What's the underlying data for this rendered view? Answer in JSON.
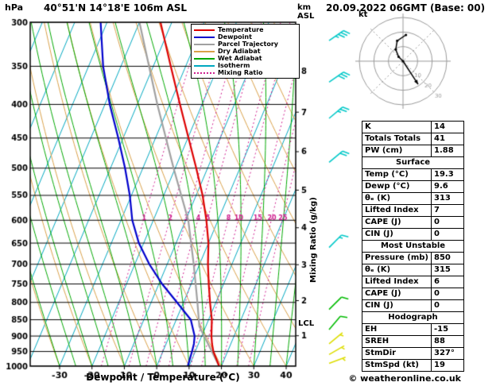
{
  "meta": {
    "pressure_unit": "hPa",
    "station": "40°51'N 14°18'E 106m ASL",
    "datetime": "20.09.2022 06GMT (Base: 00)",
    "altitude_axis_label": "km\nASL",
    "right_axis_label": "Mixing Ratio (g/kg)",
    "xlabel": "Dewpoint / Temperature (°C)",
    "lcl_label": "LCL",
    "copyright": "© weatheronline.co.uk"
  },
  "legend": [
    {
      "key": "temperature",
      "label": "Temperature",
      "color": "#dd0000",
      "style": "solid"
    },
    {
      "key": "dewpoint",
      "label": "Dewpoint",
      "color": "#0000cc",
      "style": "solid"
    },
    {
      "key": "parcel",
      "label": "Parcel Trajectory",
      "color": "#a0a0a0",
      "style": "solid"
    },
    {
      "key": "dry_adiabat",
      "label": "Dry Adiabat",
      "color": "#d9a048",
      "style": "solid"
    },
    {
      "key": "wet_adiabat",
      "label": "Wet Adiabat",
      "color": "#00a800",
      "style": "solid"
    },
    {
      "key": "isotherm",
      "label": "Isotherm",
      "color": "#00a8c0",
      "style": "solid"
    },
    {
      "key": "mixing_ratio",
      "label": "Mixing Ratio",
      "color": "#d02090",
      "style": "dotted"
    }
  ],
  "chart_data": {
    "type": "skewt-logp",
    "title": "40°51'N 14°18'E 106m ASL",
    "pressure_axis": {
      "unit": "hPa",
      "scale": "log",
      "range": [
        300,
        1000
      ],
      "ticks": [
        300,
        350,
        400,
        450,
        500,
        550,
        600,
        650,
        700,
        750,
        800,
        850,
        900,
        950,
        1000
      ]
    },
    "temp_axis": {
      "unit": "°C",
      "ticks": [
        -30,
        -20,
        -10,
        0,
        10,
        20,
        30,
        40
      ]
    },
    "km_axis": {
      "unit": "km ASL",
      "ticks": [
        1,
        2,
        3,
        4,
        5,
        6,
        7,
        8
      ]
    },
    "isotherms": {
      "start": -100,
      "end": 40,
      "step": 10
    },
    "dry_adiabats": {
      "start": -30,
      "end": 120,
      "step": 10
    },
    "wet_adiabats": {
      "start": -30,
      "end": 45,
      "step": 5
    },
    "mixing_ratio_lines": [
      1,
      2,
      3,
      4,
      5,
      8,
      10,
      15,
      20,
      25
    ],
    "mixing_ratio_label_pressure": 595,
    "lcl_pressure": 870,
    "temperature_profile": [
      [
        1000,
        19.3
      ],
      [
        950,
        15.6
      ],
      [
        925,
        14.2
      ],
      [
        900,
        13.0
      ],
      [
        850,
        11.0
      ],
      [
        800,
        8.2
      ],
      [
        750,
        5.4
      ],
      [
        700,
        2.6
      ],
      [
        650,
        0.0
      ],
      [
        600,
        -3.6
      ],
      [
        550,
        -8.0
      ],
      [
        500,
        -13.5
      ],
      [
        450,
        -19.8
      ],
      [
        400,
        -26.8
      ],
      [
        350,
        -34.6
      ],
      [
        300,
        -43.5
      ]
    ],
    "dewpoint_profile": [
      [
        1000,
        9.6
      ],
      [
        950,
        9.0
      ],
      [
        925,
        8.6
      ],
      [
        900,
        7.8
      ],
      [
        850,
        4.5
      ],
      [
        800,
        -2.0
      ],
      [
        750,
        -9.0
      ],
      [
        700,
        -15.5
      ],
      [
        650,
        -21.5
      ],
      [
        600,
        -26.5
      ],
      [
        550,
        -30.5
      ],
      [
        500,
        -35.5
      ],
      [
        450,
        -41.5
      ],
      [
        400,
        -48.5
      ],
      [
        350,
        -55.5
      ],
      [
        300,
        -62.0
      ]
    ],
    "parcel_profile": [
      [
        1000,
        19.3
      ],
      [
        870,
        8.0
      ],
      [
        800,
        4.3
      ],
      [
        700,
        -1.8
      ],
      [
        600,
        -9.2
      ],
      [
        500,
        -20.5
      ],
      [
        400,
        -33.8
      ],
      [
        300,
        -50.0
      ]
    ],
    "wind_barbs": [
      {
        "p": 320,
        "spd": 35,
        "dir": 55,
        "color": "#00c8c8"
      },
      {
        "p": 370,
        "spd": 30,
        "dir": 55,
        "color": "#00c8c8"
      },
      {
        "p": 420,
        "spd": 25,
        "dir": 50,
        "color": "#00c8c8"
      },
      {
        "p": 490,
        "spd": 20,
        "dir": 50,
        "color": "#00c8c8"
      },
      {
        "p": 660,
        "spd": 15,
        "dir": 45,
        "color": "#00c8c8"
      },
      {
        "p": 820,
        "spd": 10,
        "dir": 45,
        "color": "#00bb00"
      },
      {
        "p": 880,
        "spd": 8,
        "dir": 40,
        "color": "#00bb00"
      },
      {
        "p": 925,
        "spd": 5,
        "dir": 50,
        "color": "#dddd00"
      },
      {
        "p": 960,
        "spd": 5,
        "dir": 60,
        "color": "#dddd00"
      },
      {
        "p": 990,
        "spd": 4,
        "dir": 70,
        "color": "#dddd00"
      }
    ]
  },
  "hodograph": {
    "unit_label": "kt",
    "rings_kt": [
      10,
      20,
      30
    ],
    "max_kt": 30,
    "trace_uv_kt": [
      [
        0,
        0
      ],
      [
        -3,
        3
      ],
      [
        -5,
        8
      ],
      [
        -4,
        14
      ],
      [
        2,
        18
      ]
    ],
    "storm_motion": {
      "dir_deg": 327,
      "spd_kt": 19
    }
  },
  "table": {
    "rows": [
      {
        "type": "row",
        "label": "K",
        "value": "14"
      },
      {
        "type": "row",
        "label": "Totals Totals",
        "value": "41"
      },
      {
        "type": "row",
        "label": "PW (cm)",
        "value": "1.88"
      },
      {
        "type": "header",
        "label": "Surface"
      },
      {
        "type": "row",
        "label": "Temp (°C)",
        "value": "19.3"
      },
      {
        "type": "row",
        "label": "Dewp (°C)",
        "value": "9.6"
      },
      {
        "type": "row",
        "label": "θₑ (K)",
        "value": "313"
      },
      {
        "type": "row",
        "label": "Lifted Index",
        "value": "7"
      },
      {
        "type": "row",
        "label": "CAPE (J)",
        "value": "0"
      },
      {
        "type": "row",
        "label": "CIN (J)",
        "value": "0"
      },
      {
        "type": "header",
        "label": "Most Unstable"
      },
      {
        "type": "row",
        "label": "Pressure (mb)",
        "value": "850"
      },
      {
        "type": "row",
        "label": "θₑ (K)",
        "value": "315"
      },
      {
        "type": "row",
        "label": "Lifted Index",
        "value": "6"
      },
      {
        "type": "row",
        "label": "CAPE (J)",
        "value": "0"
      },
      {
        "type": "row",
        "label": "CIN (J)",
        "value": "0"
      },
      {
        "type": "header",
        "label": "Hodograph"
      },
      {
        "type": "row",
        "label": "EH",
        "value": "-15"
      },
      {
        "type": "row",
        "label": "SREH",
        "value": "88"
      },
      {
        "type": "row",
        "label": "StmDir",
        "value": "327°"
      },
      {
        "type": "row",
        "label": "StmSpd (kt)",
        "value": "19"
      }
    ]
  }
}
